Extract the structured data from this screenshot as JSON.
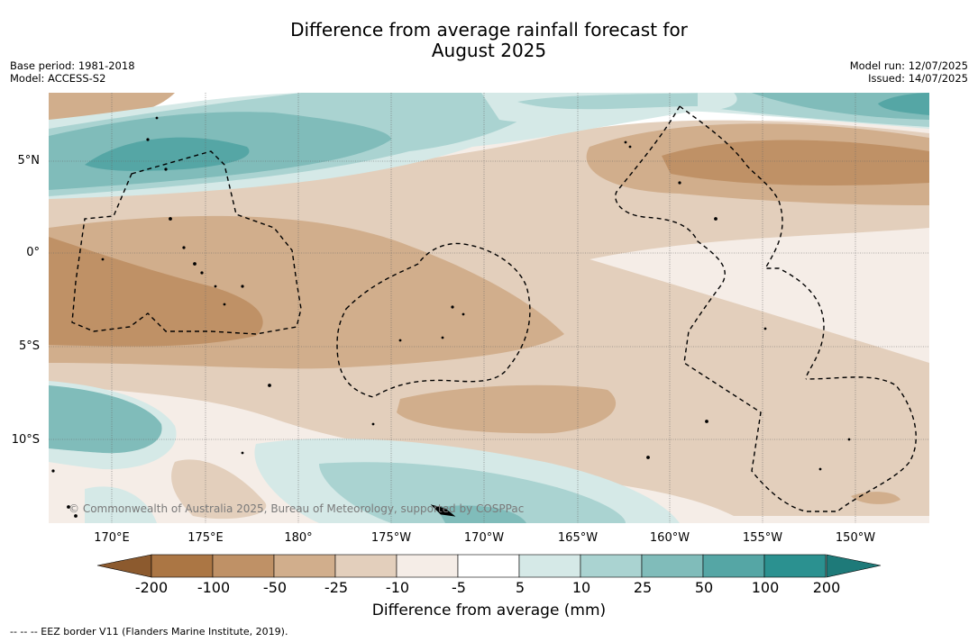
{
  "title": {
    "line1": "Difference from average rainfall forecast for",
    "line2": "August 2025"
  },
  "meta_left": {
    "base_period": "Base period: 1981-2018",
    "model": "Model: ACCESS-S2"
  },
  "meta_right": {
    "model_run": "Model run: 12/07/2025",
    "issued": "Issued: 14/07/2025"
  },
  "map": {
    "lat_labels": [
      "5°N",
      "0°",
      "5°S",
      "10°S"
    ],
    "lon_labels": [
      "170°E",
      "175°E",
      "180°",
      "175°W",
      "170°W",
      "165°W",
      "160°W",
      "155°W",
      "150°W"
    ],
    "copyright": "© Commonwealth of Australia 2025, Bureau of Meteorology, supported by COSPPac"
  },
  "colorbar": {
    "title": "Difference from average (mm)",
    "ticks": [
      "-200",
      "-100",
      "-50",
      "-25",
      "-10",
      "-5",
      "5",
      "10",
      "25",
      "50",
      "100",
      "200"
    ],
    "colors": [
      "#8c5a2e",
      "#ab7644",
      "#bf9166",
      "#d1ae8c",
      "#e3cfbc",
      "#f5ede7",
      "#ffffff",
      "#d5e9e7",
      "#aad3d1",
      "#80bcba",
      "#55a6a5",
      "#2b9190",
      "#1e7a79"
    ]
  },
  "footnote": "--  --  -- EEZ border V11 (Flanders Marine Institute, 2019)."
}
